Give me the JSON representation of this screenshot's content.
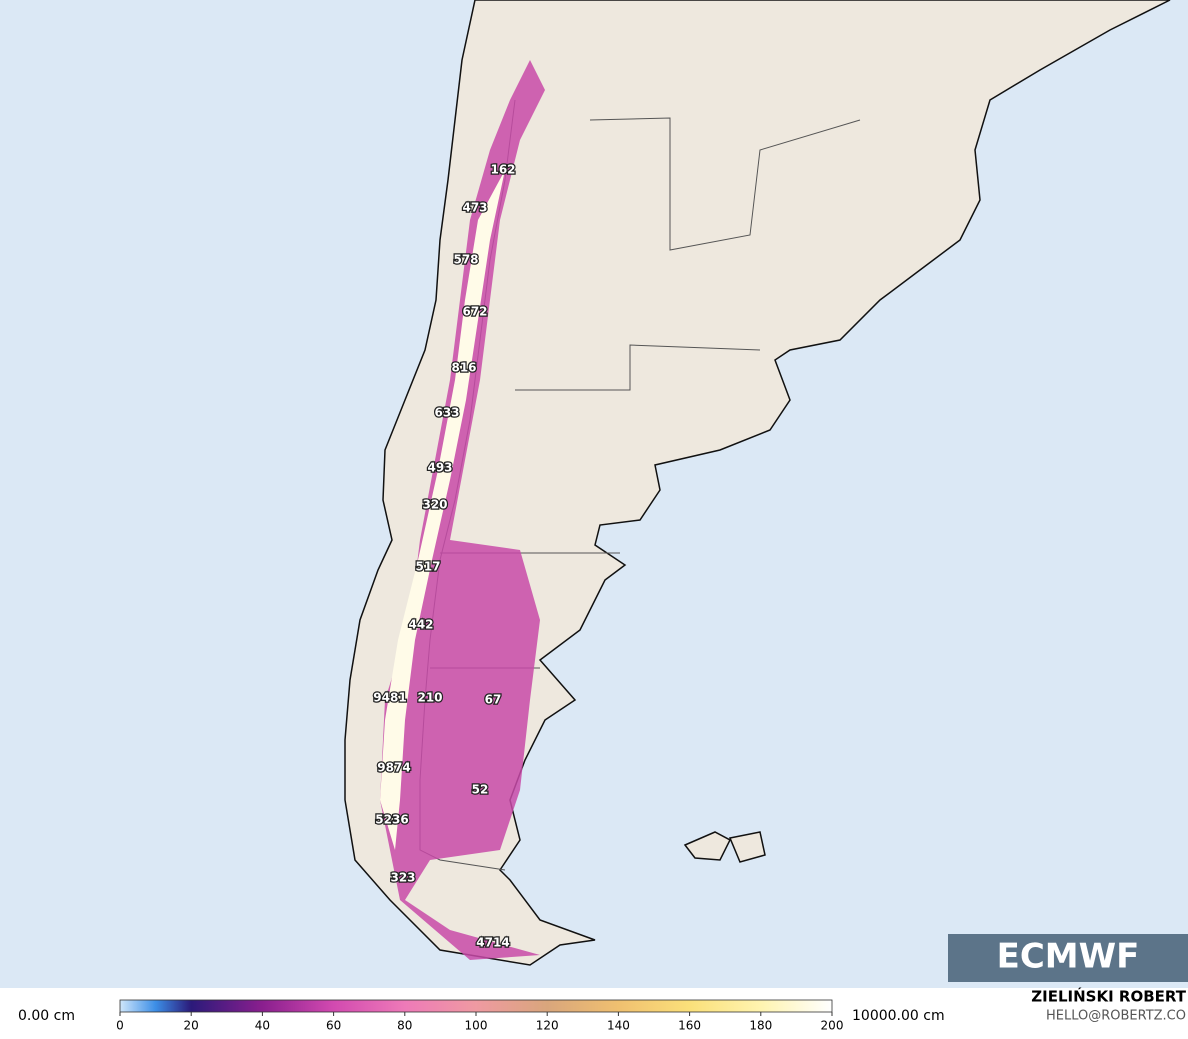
{
  "map": {
    "labels": [
      "162",
      "473",
      "578",
      "672",
      "816",
      "633",
      "493",
      "320",
      "517",
      "442",
      "9481",
      "210",
      "67",
      "9874",
      "52",
      "5236",
      "323",
      "4714"
    ],
    "logo": "ECMWF"
  },
  "legend": {
    "min_label": "0.00 cm",
    "max_label": "10000.00 cm",
    "ticks": [
      0,
      20,
      40,
      60,
      80,
      100,
      120,
      140,
      160,
      180,
      200
    ]
  },
  "credit": {
    "author": "ZIELIŃSKI ROBERT",
    "contact": "HELLO@ROBERTZ.CO"
  }
}
